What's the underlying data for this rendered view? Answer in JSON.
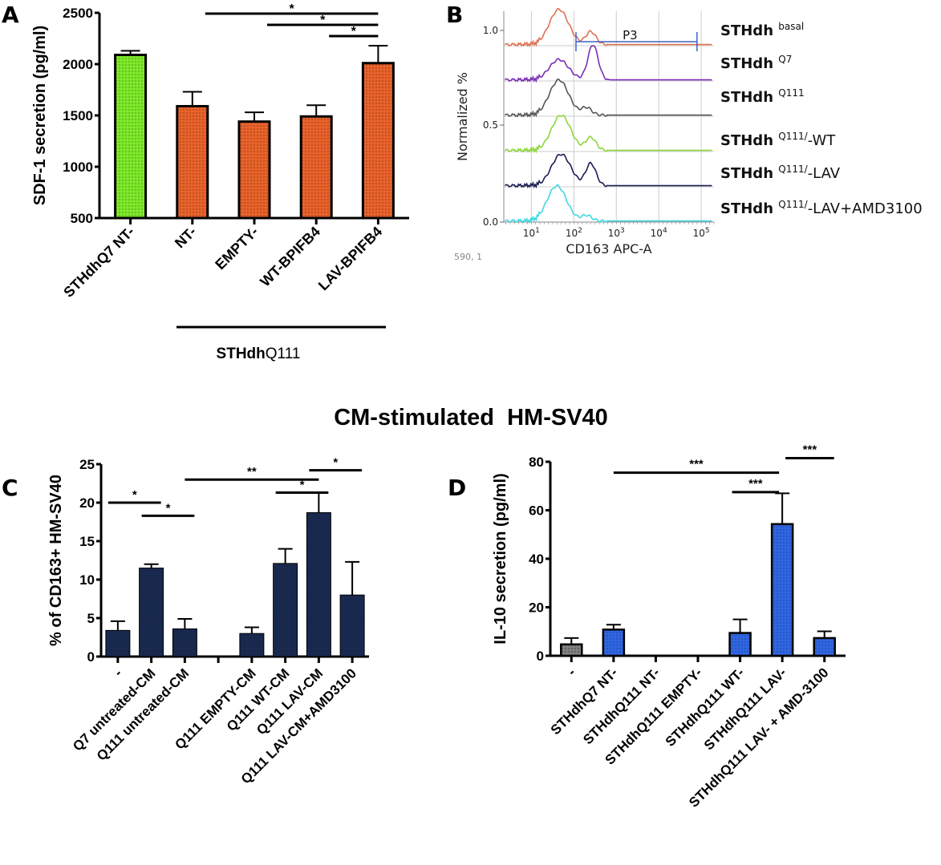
{
  "figure_title": "CM-stimulated  HM-SV40",
  "colors": {
    "green_bar": "#7ee82a",
    "orange_bar": "#e8632c",
    "navy_bar": "#1a2b52",
    "blue_bar": "#2f66e0",
    "gray_bar": "#707070",
    "gate_line": "#3a64c8"
  },
  "chart_data": [
    {
      "panel": "A",
      "type": "bar",
      "title": "",
      "xlabel": "",
      "ylabel": "SDF-1 secretion (pg/ml)",
      "ylim": [
        500,
        2500
      ],
      "yticks": [
        500,
        1000,
        1500,
        2000,
        2500
      ],
      "categories": [
        "STHdhQ7 NT-",
        "NT-",
        "EMPTY-",
        "WT-BPIFB4",
        "LAV-BPIFB4"
      ],
      "values": [
        2090,
        1590,
        1440,
        1490,
        2010
      ],
      "error_upper": [
        2130,
        1730,
        1530,
        1600,
        2180
      ],
      "bar_colors": [
        "green",
        "orange",
        "orange",
        "orange",
        "orange"
      ],
      "group_bracket": {
        "label_bold": "STHdh",
        "label_rest": "Q111",
        "from": 1,
        "to": 4
      },
      "significance": [
        {
          "from": 1,
          "to": 4,
          "label": "*"
        },
        {
          "from": 2,
          "to": 4,
          "label": "*"
        },
        {
          "from": 3,
          "to": 4,
          "label": "*"
        }
      ]
    },
    {
      "panel": "B",
      "type": "line",
      "title": "",
      "xlabel": "CD163 APC-A",
      "ylabel": "Normalized %",
      "xscale": "log",
      "xticks": [
        "10^1",
        "10^2",
        "10^3",
        "10^4",
        "10^5"
      ],
      "yticks": [
        "0.0",
        "0.5",
        "1.0"
      ],
      "gate": {
        "label": "P3",
        "from": "~1.1e2",
        "to": "~8e4"
      },
      "footnote": "590, 1",
      "series": [
        {
          "name": "STHdh basal",
          "base": "STHdh",
          "sup": "basal",
          "suffix": "",
          "color": "#e07050",
          "peaks": [
            {
              "x": 1.65,
              "h": 0.95
            },
            {
              "x": 2.4,
              "h": 0.35
            }
          ]
        },
        {
          "name": "STHdh Q7",
          "base": "STHdh",
          "sup": "Q7",
          "suffix": "",
          "color": "#7a2fb5",
          "peaks": [
            {
              "x": 1.65,
              "h": 0.55
            },
            {
              "x": 2.45,
              "h": 0.95
            }
          ]
        },
        {
          "name": "STHdh Q111",
          "base": "STHdh",
          "sup": "Q111",
          "suffix": "",
          "color": "#555555",
          "peaks": [
            {
              "x": 1.65,
              "h": 0.95
            },
            {
              "x": 2.3,
              "h": 0.2
            }
          ]
        },
        {
          "name": "STHdh Q111/-WT",
          "base": "STHdh",
          "sup": "Q111/",
          "suffix": "-WT",
          "color": "#8cd63a",
          "peaks": [
            {
              "x": 1.7,
              "h": 0.95
            },
            {
              "x": 2.4,
              "h": 0.35
            }
          ]
        },
        {
          "name": "STHdh Q111/-LAV",
          "base": "STHdh",
          "sup": "Q111/",
          "suffix": "-LAV",
          "color": "#1c1c55",
          "peaks": [
            {
              "x": 1.7,
              "h": 0.85
            },
            {
              "x": 2.4,
              "h": 0.6
            }
          ]
        },
        {
          "name": "STHdh Q111/-LAV+AMD3100",
          "base": "STHdh",
          "sup": "Q111/",
          "suffix": "-LAV+AMD3100",
          "color": "#3fd8e0",
          "peaks": [
            {
              "x": 1.6,
              "h": 0.95
            },
            {
              "x": 2.3,
              "h": 0.15
            }
          ]
        }
      ]
    },
    {
      "panel": "C",
      "type": "bar",
      "title": "",
      "xlabel": "",
      "ylabel": "% of CD163+ HM-SV40",
      "ylim": [
        0,
        25
      ],
      "yticks": [
        0,
        5,
        10,
        15,
        20,
        25
      ],
      "categories": [
        "-",
        "Q7 untreated-CM",
        "Q111 untreated-CM",
        "",
        "Q111 EMPTY-CM",
        "Q111 WT-CM",
        "Q111 LAV-CM",
        "Q111 LAV-CM+AMD3100"
      ],
      "values": [
        3.4,
        11.5,
        3.6,
        null,
        3.0,
        12.1,
        18.7,
        8.0
      ],
      "error_upper": [
        4.6,
        12.0,
        4.9,
        null,
        3.8,
        14.0,
        21.3,
        12.3
      ],
      "significance": [
        {
          "from": 0,
          "to": 1,
          "label": "*",
          "y": 20
        },
        {
          "from": 1,
          "to": 2,
          "label": "*",
          "y": 18.3
        },
        {
          "from": 2,
          "to": 6,
          "label": "**",
          "y": 23.0
        },
        {
          "from": 5,
          "to": 6,
          "label": "*",
          "y": 21.3
        },
        {
          "from": 6,
          "to": 7,
          "label": "*",
          "y": 24.2
        }
      ]
    },
    {
      "panel": "D",
      "type": "bar",
      "title": "",
      "xlabel": "",
      "ylabel": "IL-10 secretion (pg/ml)",
      "ylim": [
        0,
        80
      ],
      "yticks": [
        0,
        20,
        40,
        60,
        80
      ],
      "categories": [
        "-",
        "STHdhQ7 NT-",
        "STHdhQ111 NT-",
        "STHdhQ111 EMPTY-",
        "STHdhQ111 WT-",
        "STHdhQ111 LAV-",
        "STHdhQ111  LAV- + AMD-3100"
      ],
      "values": [
        4.7,
        10.8,
        0,
        0,
        9.4,
        54.3,
        7.3
      ],
      "error_upper": [
        7.3,
        12.8,
        0,
        0,
        15.0,
        67.0,
        10.1
      ],
      "bar_colors": [
        "gray",
        "blue",
        "blue",
        "blue",
        "blue",
        "blue",
        "blue"
      ],
      "significance": [
        {
          "from": 1,
          "to": 5,
          "label": "***",
          "y": 75.5
        },
        {
          "from": 4,
          "to": 5,
          "label": "***",
          "y": 67.5
        },
        {
          "from": 5,
          "to": 6,
          "label": "***",
          "y": 81.5
        }
      ]
    }
  ]
}
